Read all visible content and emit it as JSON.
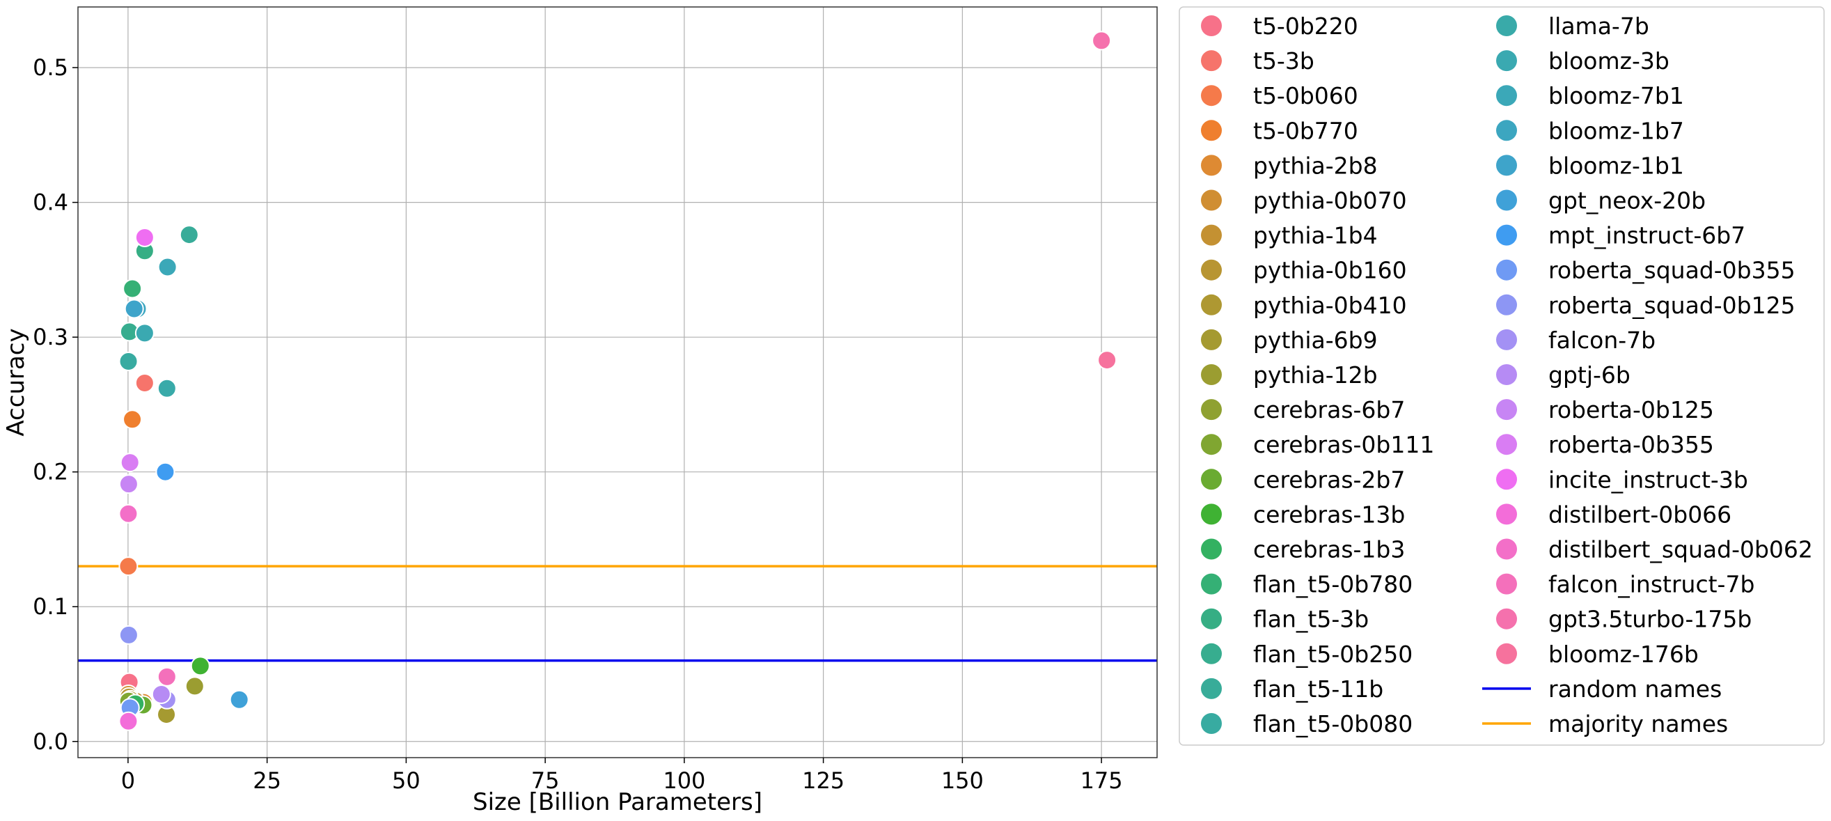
{
  "chart_data": {
    "type": "scatter",
    "title": "",
    "xlabel": "Size [Billion Parameters]",
    "ylabel": "Accuracy",
    "xlim": [
      -9,
      185
    ],
    "ylim": [
      -0.012,
      0.545
    ],
    "xticks": [
      0,
      25,
      50,
      75,
      100,
      125,
      150,
      175
    ],
    "yticks": [
      0.0,
      0.1,
      0.2,
      0.3,
      0.4,
      0.5
    ],
    "grid": true,
    "legend_position": "outside-right",
    "series": [
      {
        "name": "t5-0b220",
        "color": "#f77189",
        "points": [
          [
            0.22,
            0.044
          ]
        ]
      },
      {
        "name": "t5-3b",
        "color": "#f6746b",
        "points": [
          [
            3.0,
            0.266
          ]
        ]
      },
      {
        "name": "t5-0b060",
        "color": "#f57a4a",
        "points": [
          [
            0.06,
            0.13
          ]
        ]
      },
      {
        "name": "t5-0b770",
        "color": "#ef7f2e",
        "points": [
          [
            0.77,
            0.239
          ]
        ]
      },
      {
        "name": "pythia-2b8",
        "color": "#de8a33",
        "points": [
          [
            2.8,
            0.029
          ]
        ]
      },
      {
        "name": "pythia-0b070",
        "color": "#d08e32",
        "points": [
          [
            0.07,
            0.035
          ]
        ]
      },
      {
        "name": "pythia-1b4",
        "color": "#c49132",
        "points": [
          [
            1.4,
            0.03
          ]
        ]
      },
      {
        "name": "pythia-0b160",
        "color": "#b89532",
        "points": [
          [
            0.16,
            0.033
          ]
        ]
      },
      {
        "name": "pythia-0b410",
        "color": "#ae9832",
        "points": [
          [
            0.41,
            0.031
          ]
        ]
      },
      {
        "name": "pythia-6b9",
        "color": "#a59a31",
        "points": [
          [
            6.9,
            0.02
          ]
        ]
      },
      {
        "name": "pythia-12b",
        "color": "#9b9d31",
        "points": [
          [
            12.0,
            0.041
          ]
        ]
      },
      {
        "name": "cerebras-6b7",
        "color": "#8fa131",
        "points": [
          [
            6.7,
            0.033
          ]
        ]
      },
      {
        "name": "cerebras-0b111",
        "color": "#80a631",
        "points": [
          [
            0.11,
            0.03
          ]
        ]
      },
      {
        "name": "cerebras-2b7",
        "color": "#6aab31",
        "points": [
          [
            2.7,
            0.027
          ]
        ]
      },
      {
        "name": "cerebras-13b",
        "color": "#3fb233",
        "points": [
          [
            13.0,
            0.056
          ]
        ]
      },
      {
        "name": "cerebras-1b3",
        "color": "#33b161",
        "points": [
          [
            1.3,
            0.028
          ]
        ]
      },
      {
        "name": "flan_t5-0b780",
        "color": "#35b075",
        "points": [
          [
            0.78,
            0.336
          ]
        ]
      },
      {
        "name": "flan_t5-3b",
        "color": "#36ae84",
        "points": [
          [
            3.0,
            0.364
          ]
        ]
      },
      {
        "name": "flan_t5-0b250",
        "color": "#37ad8f",
        "points": [
          [
            0.25,
            0.304
          ]
        ]
      },
      {
        "name": "flan_t5-11b",
        "color": "#38ac99",
        "points": [
          [
            11.0,
            0.376
          ]
        ]
      },
      {
        "name": "flan_t5-0b080",
        "color": "#38aba1",
        "points": [
          [
            0.08,
            0.282
          ]
        ]
      },
      {
        "name": "llama-7b",
        "color": "#39aaa9",
        "points": [
          [
            7.0,
            0.262
          ]
        ]
      },
      {
        "name": "bloomz-3b",
        "color": "#3aa9b1",
        "points": [
          [
            3.0,
            0.303
          ]
        ]
      },
      {
        "name": "bloomz-7b1",
        "color": "#3ba8b8",
        "points": [
          [
            7.1,
            0.352
          ]
        ]
      },
      {
        "name": "bloomz-1b7",
        "color": "#3ca6c0",
        "points": [
          [
            1.7,
            0.321
          ]
        ]
      },
      {
        "name": "bloomz-1b1",
        "color": "#3ea4ca",
        "points": [
          [
            1.1,
            0.321
          ]
        ]
      },
      {
        "name": "gpt_neox-20b",
        "color": "#3fa1d8",
        "points": [
          [
            20.0,
            0.031
          ]
        ]
      },
      {
        "name": "mpt_instruct-6b7",
        "color": "#3f9cf1",
        "points": [
          [
            6.7,
            0.2
          ]
        ]
      },
      {
        "name": "roberta_squad-0b355",
        "color": "#6f9af4",
        "points": [
          [
            0.355,
            0.025
          ]
        ]
      },
      {
        "name": "roberta_squad-0b125",
        "color": "#8d96f4",
        "points": [
          [
            0.125,
            0.079
          ]
        ]
      },
      {
        "name": "falcon-7b",
        "color": "#a391f4",
        "points": [
          [
            7.0,
            0.031
          ]
        ]
      },
      {
        "name": "gptj-6b",
        "color": "#b68bf4",
        "points": [
          [
            6.0,
            0.035
          ]
        ]
      },
      {
        "name": "roberta-0b125",
        "color": "#c785f4",
        "points": [
          [
            0.125,
            0.191
          ]
        ]
      },
      {
        "name": "roberta-0b355",
        "color": "#d97df3",
        "points": [
          [
            0.355,
            0.207
          ]
        ]
      },
      {
        "name": "incite_instruct-3b",
        "color": "#ef6ef2",
        "points": [
          [
            3.0,
            0.374
          ]
        ]
      },
      {
        "name": "distilbert-0b066",
        "color": "#f36dd9",
        "points": [
          [
            0.066,
            0.015
          ]
        ]
      },
      {
        "name": "distilbert_squad-0b062",
        "color": "#f36fc8",
        "points": [
          [
            0.062,
            0.169
          ]
        ]
      },
      {
        "name": "falcon_instruct-7b",
        "color": "#f470bb",
        "points": [
          [
            7.0,
            0.048
          ]
        ]
      },
      {
        "name": "gpt3.5turbo-175b",
        "color": "#f571ad",
        "points": [
          [
            175.0,
            0.52
          ]
        ]
      },
      {
        "name": "bloomz-176b",
        "color": "#f6729d",
        "points": [
          [
            176.0,
            0.283
          ]
        ]
      }
    ],
    "reference_lines": [
      {
        "name": "random names",
        "color": "#0000ee",
        "y": 0.06
      },
      {
        "name": "majority names",
        "color": "#ffa500",
        "y": 0.13
      }
    ]
  }
}
